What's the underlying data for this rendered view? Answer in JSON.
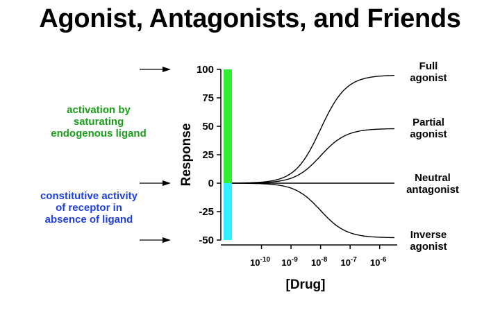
{
  "title": "Agonist, Antagonists, and Friends",
  "annotations": {
    "activation": [
      "activation by",
      "saturating",
      "endogenous ligand"
    ],
    "constitutive": [
      "constitutive activity",
      "of receptor in",
      "absence of ligand"
    ]
  },
  "curve_labels": {
    "full": [
      "Full",
      "agonist"
    ],
    "partial": [
      "Partial",
      "agonist"
    ],
    "neutral": [
      "Neutral",
      "antagonist"
    ],
    "inverse": [
      "Inverse",
      "agonist"
    ]
  },
  "colors": {
    "activation_text": "#1a9e1a",
    "constitutive_text": "#1f3fe0",
    "activation_bar": "#33ee33",
    "constitutive_bar": "#33eeff",
    "curve": "#000000"
  },
  "chart_data": {
    "type": "line",
    "ylabel": "Response",
    "xlabel": "[Drug]",
    "ylim": [
      -50,
      100
    ],
    "yticks": [
      100,
      75,
      50,
      25,
      0,
      -25,
      -50
    ],
    "xticks": [
      {
        "base": "10",
        "exp": "-10",
        "value": -10
      },
      {
        "base": "10",
        "exp": "-9",
        "value": -9
      },
      {
        "base": "10",
        "exp": "-8",
        "value": -8
      },
      {
        "base": "10",
        "exp": "-7",
        "value": -7
      },
      {
        "base": "10",
        "exp": "-6",
        "value": -6
      }
    ],
    "xscale": "log",
    "xlim": [
      -11,
      -5.5
    ],
    "bars": [
      {
        "name": "activation",
        "from": 0,
        "to": 100
      },
      {
        "name": "constitutive",
        "from": -50,
        "to": 0
      }
    ],
    "series": [
      {
        "key": "full",
        "top": 95,
        "ec50_log": -8
      },
      {
        "key": "partial",
        "top": 48,
        "ec50_log": -8
      },
      {
        "key": "neutral",
        "top": 0,
        "ec50_log": -8
      },
      {
        "key": "inverse",
        "top": -48,
        "ec50_log": -8
      }
    ]
  }
}
